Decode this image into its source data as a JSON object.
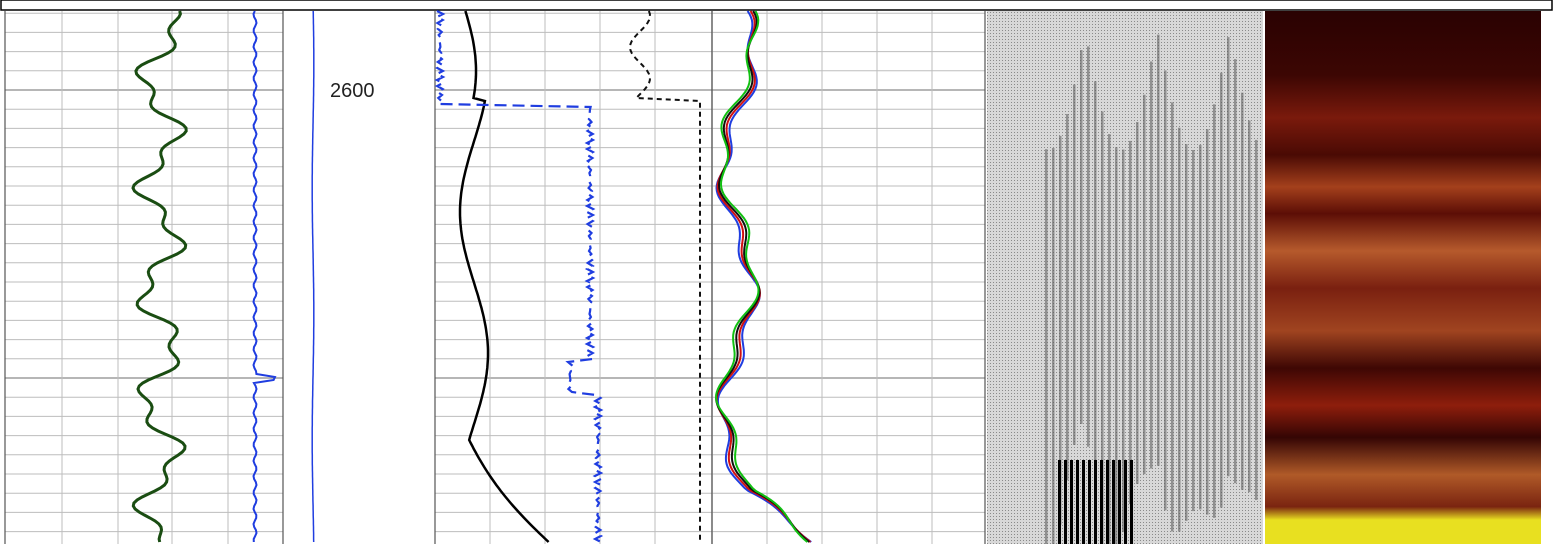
{
  "depth_labels": [
    "2600"
  ]
}
